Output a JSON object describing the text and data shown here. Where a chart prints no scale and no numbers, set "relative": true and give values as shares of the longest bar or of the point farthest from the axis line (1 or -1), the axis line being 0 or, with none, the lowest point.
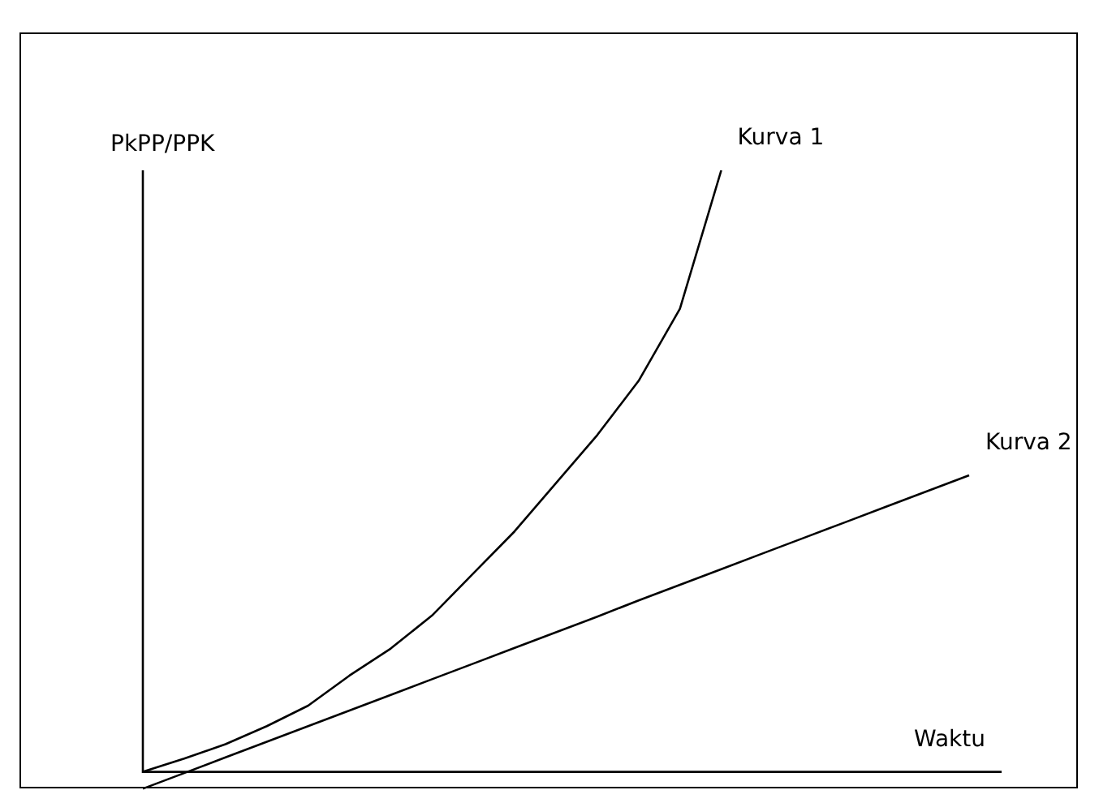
{
  "chart_data": {
    "type": "line",
    "relative": true,
    "xlabel": "Waktu",
    "ylabel": "PkPP/PPK",
    "marker": "none",
    "legend": false,
    "categories": [
      null,
      null,
      null,
      null,
      null,
      null,
      null,
      null,
      null,
      null,
      null,
      null,
      null,
      null,
      null,
      null,
      null,
      null,
      null,
      null,
      null
    ],
    "series": [
      {
        "name": "Kurva 1",
        "color": "#000000",
        "values": [
          0,
          0.022,
          0.046,
          0.076,
          0.11,
          0.16,
          0.205,
          0.26,
          0.33,
          0.4,
          0.48,
          0.56,
          0.65,
          0.77,
          1,
          null,
          null,
          null,
          null,
          null,
          null
        ]
      },
      {
        "name": "Kurva 2",
        "color": "#000000",
        "values": [
          -0.028,
          -0.002,
          0.024,
          0.05,
          0.076,
          0.102,
          0.128,
          0.154,
          0.18,
          0.206,
          0.232,
          0.258,
          0.285,
          0.311,
          0.337,
          0.363,
          0.389,
          0.415,
          0.441,
          0.467,
          0.493
        ]
      }
    ]
  }
}
